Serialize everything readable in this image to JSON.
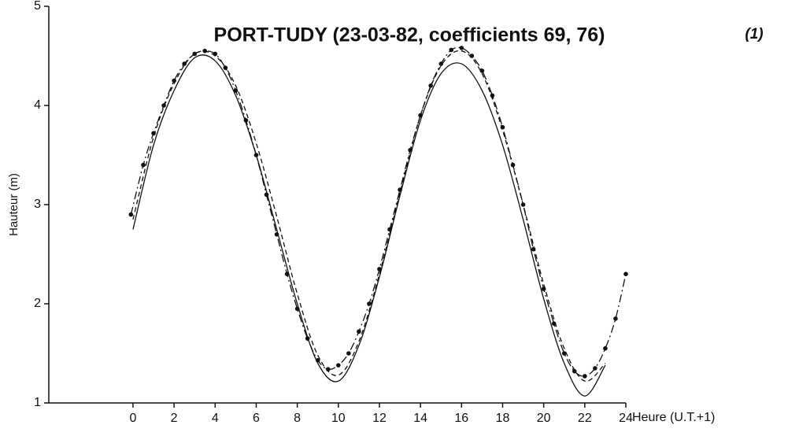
{
  "chart_data": {
    "type": "line",
    "title": "PORT-TUDY (23-03-82, coefficients 69, 76)",
    "annotation": "(1)",
    "ylabel": "Hauteur (m)",
    "xlabel": "Heure (U.T.+1)",
    "xlim": [
      -4.1,
      24
    ],
    "ylim": [
      1,
      5
    ],
    "xticks": [
      0,
      2,
      4,
      6,
      8,
      10,
      12,
      14,
      16,
      18,
      20,
      22,
      24
    ],
    "yticks": [
      1,
      2,
      3,
      4,
      5
    ],
    "series": [
      {
        "color": "#111111",
        "line_style": "solid",
        "x": [
          0,
          1,
          2,
          3,
          4,
          5,
          6,
          7,
          8,
          9,
          10,
          11,
          12,
          13,
          14,
          15,
          16,
          17,
          18,
          19,
          20,
          21,
          22,
          23
        ],
        "values": [
          2.75,
          3.6,
          4.15,
          4.48,
          4.45,
          4.1,
          3.5,
          2.75,
          2.0,
          1.4,
          1.22,
          1.58,
          2.27,
          3.09,
          3.85,
          4.32,
          4.42,
          4.15,
          3.6,
          2.85,
          2.05,
          1.4,
          1.07,
          1.38
        ]
      },
      {
        "color": "#111111",
        "line_style": "dashed",
        "x": [
          0,
          1,
          2,
          3,
          4,
          5,
          6,
          7,
          8,
          9,
          10,
          11,
          12,
          13,
          14,
          15,
          16,
          17,
          18,
          19,
          20,
          21,
          22,
          23
        ],
        "values": [
          2.85,
          3.68,
          4.22,
          4.52,
          4.5,
          4.2,
          3.62,
          2.88,
          2.1,
          1.48,
          1.28,
          1.62,
          2.3,
          3.12,
          3.9,
          4.4,
          4.55,
          4.32,
          3.75,
          3.0,
          2.2,
          1.55,
          1.22,
          1.4
        ]
      },
      {
        "color": "#111111",
        "line_style": "dashdot",
        "markers": true,
        "x": [
          -0.1,
          0.5,
          1,
          1.5,
          2,
          2.5,
          3,
          3.5,
          4,
          4.5,
          5,
          5.5,
          6,
          6.5,
          7,
          7.5,
          8,
          8.5,
          9,
          9.5,
          10,
          10.5,
          11,
          11.5,
          12,
          12.5,
          13,
          13.5,
          14,
          14.5,
          15,
          15.5,
          16,
          16.5,
          17,
          17.5,
          18,
          18.5,
          19,
          19.5,
          20,
          20.5,
          21,
          21.5,
          22,
          22.5,
          23,
          23.5,
          24
        ],
        "values": [
          2.9,
          3.4,
          3.72,
          4.0,
          4.25,
          4.42,
          4.52,
          4.55,
          4.52,
          4.38,
          4.15,
          3.85,
          3.5,
          3.1,
          2.7,
          2.3,
          1.95,
          1.65,
          1.43,
          1.34,
          1.38,
          1.5,
          1.72,
          2.0,
          2.35,
          2.75,
          3.15,
          3.55,
          3.9,
          4.2,
          4.42,
          4.56,
          4.58,
          4.5,
          4.35,
          4.1,
          3.78,
          3.4,
          3.0,
          2.55,
          2.15,
          1.8,
          1.5,
          1.32,
          1.27,
          1.35,
          1.55,
          1.85,
          2.3
        ]
      }
    ]
  }
}
